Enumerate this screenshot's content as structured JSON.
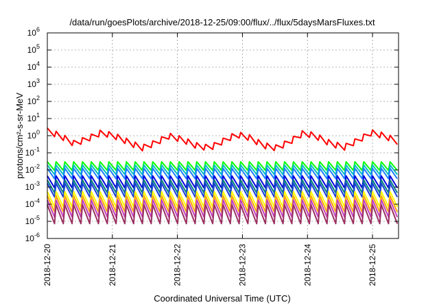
{
  "chart_data": {
    "type": "line",
    "title": "/data/run/goesPlots/archive/2018-12-25/09:00/flux/../flux/5daysMarsFluxes.txt",
    "xlabel": "Coordinated Universal Time (UTC)",
    "ylabel": "protons/cm²-s-sr-MeV",
    "yscale": "log",
    "ylim_exponent": [
      -6,
      6
    ],
    "y_ticks": [
      {
        "base": "10",
        "exp": "-6"
      },
      {
        "base": "10",
        "exp": "-5"
      },
      {
        "base": "10",
        "exp": "-4"
      },
      {
        "base": "10",
        "exp": "-3"
      },
      {
        "base": "10",
        "exp": "-2"
      },
      {
        "base": "10",
        "exp": "-1"
      },
      {
        "base": "10",
        "exp": "0"
      },
      {
        "base": "10",
        "exp": "1"
      },
      {
        "base": "10",
        "exp": "2"
      },
      {
        "base": "10",
        "exp": "3"
      },
      {
        "base": "10",
        "exp": "4"
      },
      {
        "base": "10",
        "exp": "5"
      },
      {
        "base": "10",
        "exp": "6"
      }
    ],
    "x_ticks": [
      "2018-12-20",
      "2018-12-21",
      "2018-12-22",
      "2018-12-23",
      "2018-12-24",
      "2018-12-25"
    ],
    "x_tick_days": [
      0,
      1,
      2,
      3,
      4,
      5
    ],
    "xlim_days": [
      0,
      5.4
    ],
    "grid": true,
    "legend": "none",
    "sawtooth_teeth_per_day": 7.4,
    "series": [
      {
        "color": "#ff0000",
        "level_log10": [
          0.4,
          0.1,
          -0.35,
          -0.05,
          0.3,
          0.1,
          -0.25,
          -0.6,
          -0.3,
          0.1,
          -0.1,
          -0.45,
          -0.6,
          -0.2,
          0.2,
          0.0,
          -0.45,
          -0.6,
          -0.2,
          0.3,
          0.05,
          -0.35,
          -0.55,
          -0.15,
          0.3,
          0.1,
          -0.25
        ],
        "tooth_dip": 0.35
      },
      {
        "color": "#00ff00",
        "level_log10": [
          -1.6
        ],
        "tooth_dip": 0.5
      },
      {
        "color": "#00c0c0",
        "level_log10": [
          -1.8
        ],
        "tooth_dip": 0.55
      },
      {
        "color": "#1a7fff",
        "level_log10": [
          -2.0
        ],
        "tooth_dip": 0.6
      },
      {
        "color": "#0000dd",
        "level_log10": [
          -2.45
        ],
        "tooth_dip": 0.7
      },
      {
        "color": "#008080",
        "level_log10": [
          -2.7
        ],
        "tooth_dip": 0.75
      },
      {
        "color": "#1a3fd8",
        "level_log10": [
          -2.9
        ],
        "tooth_dip": 0.8
      },
      {
        "color": "#ffff00",
        "level_log10": [
          -3.4
        ],
        "tooth_dip": 0.9
      },
      {
        "color": "#ffa500",
        "level_log10": [
          -3.65
        ],
        "tooth_dip": 0.95
      },
      {
        "color": "#c040c0",
        "level_log10": [
          -3.9
        ],
        "tooth_dip": 1.0
      },
      {
        "color": "#9a3060",
        "level_log10": [
          -4.2
        ],
        "tooth_dip": 1.1
      }
    ]
  }
}
